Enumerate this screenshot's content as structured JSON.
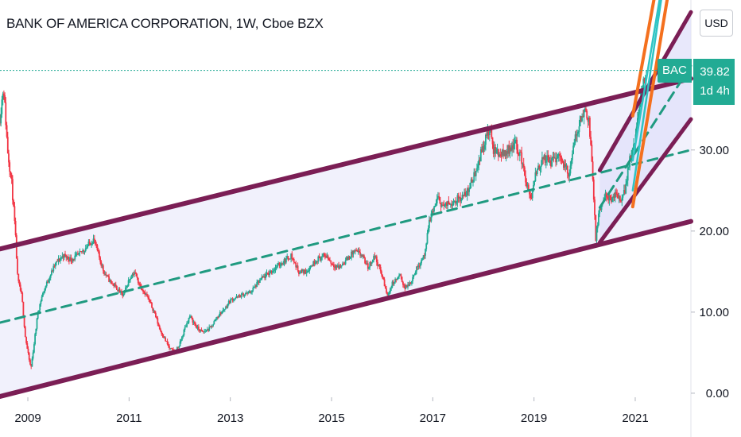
{
  "header": {
    "title": "BANK OF AMERICA CORPORATION, 1W, Cboe BZX",
    "currency": "USD"
  },
  "price_label": {
    "symbol": "BAC",
    "value": "39.82",
    "countdown": "1d 4h"
  },
  "colors": {
    "candle_up": "#22ab94",
    "candle_down": "#f23645",
    "channel_line": "#7b1e55",
    "channel_fill": "#eeeefc",
    "midline": "#1f9a80",
    "fork_orange": "#f4701e",
    "fork_teal": "#2ec4c4",
    "last_price_line": "#22ab94"
  },
  "chart_data": {
    "type": "candlestick",
    "title": "BANK OF AMERICA CORPORATION, 1W, Cboe BZX",
    "xlabel": "",
    "ylabel": "",
    "x_ticks": [
      "2009",
      "2011",
      "2013",
      "2015",
      "2017",
      "2019",
      "2021"
    ],
    "y_ticks": [
      "0.00",
      "10.00",
      "20.00",
      "30.00"
    ],
    "xlim": [
      2008.45,
      2022.1
    ],
    "ylim": [
      -0.5,
      48.5
    ],
    "last_price": 39.82,
    "price_series": [
      [
        2008.45,
        34
      ],
      [
        2008.52,
        38
      ],
      [
        2008.6,
        30
      ],
      [
        2008.68,
        26
      ],
      [
        2008.75,
        20
      ],
      [
        2008.8,
        14
      ],
      [
        2008.88,
        12
      ],
      [
        2008.95,
        7
      ],
      [
        2009.0,
        5
      ],
      [
        2009.06,
        3
      ],
      [
        2009.1,
        5
      ],
      [
        2009.2,
        10
      ],
      [
        2009.28,
        12
      ],
      [
        2009.4,
        14
      ],
      [
        2009.55,
        16
      ],
      [
        2009.7,
        17
      ],
      [
        2009.85,
        16.5
      ],
      [
        2010.0,
        17
      ],
      [
        2010.15,
        18
      ],
      [
        2010.3,
        19
      ],
      [
        2010.4,
        17
      ],
      [
        2010.5,
        15
      ],
      [
        2010.6,
        14
      ],
      [
        2010.75,
        13
      ],
      [
        2010.88,
        12
      ],
      [
        2011.0,
        14
      ],
      [
        2011.1,
        15
      ],
      [
        2011.2,
        13.5
      ],
      [
        2011.35,
        12
      ],
      [
        2011.5,
        10
      ],
      [
        2011.6,
        8
      ],
      [
        2011.72,
        6.5
      ],
      [
        2011.8,
        5.5
      ],
      [
        2011.9,
        5
      ],
      [
        2012.0,
        6
      ],
      [
        2012.1,
        8
      ],
      [
        2012.2,
        9.5
      ],
      [
        2012.35,
        8
      ],
      [
        2012.45,
        7.5
      ],
      [
        2012.6,
        8
      ],
      [
        2012.75,
        9.5
      ],
      [
        2012.9,
        10.5
      ],
      [
        2013.0,
        11.5
      ],
      [
        2013.2,
        12
      ],
      [
        2013.4,
        12.5
      ],
      [
        2013.6,
        14
      ],
      [
        2013.8,
        15
      ],
      [
        2014.0,
        16
      ],
      [
        2014.2,
        17
      ],
      [
        2014.35,
        15
      ],
      [
        2014.5,
        15
      ],
      [
        2014.7,
        16.5
      ],
      [
        2014.9,
        17
      ],
      [
        2015.0,
        16
      ],
      [
        2015.15,
        15.5
      ],
      [
        2015.3,
        16.5
      ],
      [
        2015.45,
        17.5
      ],
      [
        2015.6,
        17
      ],
      [
        2015.72,
        15.5
      ],
      [
        2015.85,
        17
      ],
      [
        2016.0,
        14.5
      ],
      [
        2016.1,
        12
      ],
      [
        2016.2,
        13.5
      ],
      [
        2016.35,
        14.5
      ],
      [
        2016.45,
        13
      ],
      [
        2016.55,
        13.5
      ],
      [
        2016.65,
        15
      ],
      [
        2016.78,
        16.5
      ],
      [
        2016.86,
        17.5
      ],
      [
        2016.92,
        21
      ],
      [
        2017.0,
        22.5
      ],
      [
        2017.1,
        24
      ],
      [
        2017.22,
        23
      ],
      [
        2017.35,
        23.5
      ],
      [
        2017.5,
        24
      ],
      [
        2017.65,
        24.5
      ],
      [
        2017.8,
        26.5
      ],
      [
        2017.92,
        29
      ],
      [
        2018.05,
        31.5
      ],
      [
        2018.12,
        32.5
      ],
      [
        2018.2,
        30
      ],
      [
        2018.35,
        29.5
      ],
      [
        2018.5,
        30
      ],
      [
        2018.62,
        31
      ],
      [
        2018.75,
        29
      ],
      [
        2018.88,
        25
      ],
      [
        2018.95,
        24
      ],
      [
        2019.05,
        27.5
      ],
      [
        2019.2,
        29
      ],
      [
        2019.35,
        28.5
      ],
      [
        2019.5,
        29.5
      ],
      [
        2019.6,
        28
      ],
      [
        2019.7,
        27
      ],
      [
        2019.8,
        31
      ],
      [
        2019.9,
        33.5
      ],
      [
        2020.0,
        35
      ],
      [
        2020.08,
        34
      ],
      [
        2020.13,
        30
      ],
      [
        2020.18,
        24
      ],
      [
        2020.22,
        19
      ],
      [
        2020.28,
        22
      ],
      [
        2020.38,
        24
      ],
      [
        2020.45,
        24.5
      ],
      [
        2020.52,
        23.5
      ],
      [
        2020.62,
        24.5
      ],
      [
        2020.72,
        24
      ],
      [
        2020.8,
        25
      ],
      [
        2020.86,
        28
      ],
      [
        2020.92,
        29.5
      ],
      [
        2021.0,
        31
      ],
      [
        2021.05,
        34
      ],
      [
        2021.1,
        36
      ],
      [
        2021.16,
        38
      ],
      [
        2021.22,
        39.82
      ]
    ],
    "drawings": {
      "channel_upper": [
        [
          2008.45,
          17.8
        ],
        [
          2022.1,
          38.8
        ]
      ],
      "channel_lower": [
        [
          2008.45,
          -0.4
        ],
        [
          2022.1,
          21.2
        ]
      ],
      "channel_mid": [
        [
          2008.45,
          8.7
        ],
        [
          2022.1,
          30.0
        ]
      ],
      "fork_upper": [
        [
          2020.3,
          27.5
        ],
        [
          2022.1,
          47.0
        ]
      ],
      "fork_lower": [
        [
          2020.3,
          18.6
        ],
        [
          2022.1,
          33.8
        ]
      ],
      "fork_mid": [
        [
          2020.3,
          22.9
        ],
        [
          2022.1,
          40.4
        ]
      ],
      "orange_ray_1": [
        [
          2020.95,
          34.2
        ],
        [
          2021.5,
          53.0
        ]
      ],
      "orange_ray_2": [
        [
          2020.95,
          23.0
        ],
        [
          2021.75,
          53.0
        ]
      ],
      "teal_ray_1": [
        [
          2020.95,
          28.7
        ],
        [
          2021.6,
          53.0
        ]
      ],
      "teal_ray_2": [
        [
          2020.95,
          25.0
        ],
        [
          2021.62,
          53.0
        ]
      ]
    }
  }
}
